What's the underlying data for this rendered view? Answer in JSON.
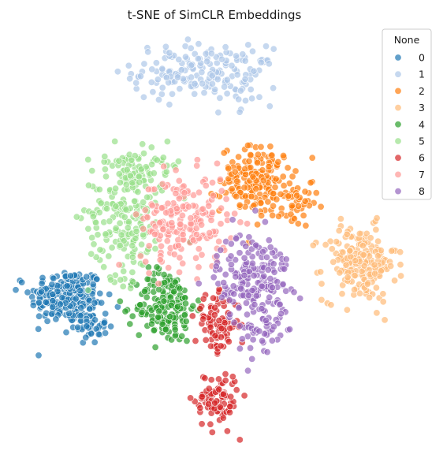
{
  "chart_data": {
    "type": "scatter",
    "title": "t-SNE of SimCLR Embeddings",
    "xlabel": "",
    "ylabel": "",
    "axes_visible": false,
    "grid": false,
    "legend": {
      "title": "None",
      "placement": "top-right",
      "entries": [
        "0",
        "1",
        "2",
        "3",
        "4",
        "5",
        "6",
        "7",
        "8"
      ]
    },
    "colors": {
      "0": "#1f77b4",
      "1": "#aec7e8",
      "2": "#ff7f0e",
      "3": "#ffbb78",
      "4": "#2ca02c",
      "5": "#98df8a",
      "6": "#d62728",
      "7": "#ff9896",
      "8": "#9467bd"
    },
    "point_opacity": 0.7,
    "series": [
      {
        "name": "0",
        "clusters": [
          {
            "center": [
              -42,
              -10
            ],
            "spread": [
              5,
              3
            ],
            "count": 220
          },
          {
            "center": [
              -36,
              -16
            ],
            "spread": [
              2.5,
              2
            ],
            "count": 50
          }
        ]
      },
      {
        "name": "1",
        "clusters": [
          {
            "center": [
              -8,
              38
            ],
            "spread": [
              8,
              3
            ],
            "count": 150
          },
          {
            "center": [
              8,
              37
            ],
            "spread": [
              3,
              3
            ],
            "count": 40
          }
        ]
      },
      {
        "name": "2",
        "clusters": [
          {
            "center": [
              10,
              15
            ],
            "spread": [
              5,
              3.5
            ],
            "count": 180
          },
          {
            "center": [
              20,
              9
            ],
            "spread": [
              3,
              2
            ],
            "count": 40
          }
        ]
      },
      {
        "name": "3",
        "clusters": [
          {
            "center": [
              38,
              -3
            ],
            "spread": [
              5,
              4
            ],
            "count": 200
          }
        ]
      },
      {
        "name": "4",
        "clusters": [
          {
            "center": [
              -15,
              -12
            ],
            "spread": [
              4,
              4
            ],
            "count": 180
          }
        ]
      },
      {
        "name": "5",
        "clusters": [
          {
            "center": [
              -26,
              8
            ],
            "spread": [
              5,
              7
            ],
            "count": 200
          },
          {
            "center": [
              -20,
              18
            ],
            "spread": [
              5,
              2
            ],
            "count": 50
          }
        ]
      },
      {
        "name": "6",
        "clusters": [
          {
            "center": [
              -1,
              -16
            ],
            "spread": [
              3,
              3
            ],
            "count": 90
          },
          {
            "center": [
              -1,
              -32
            ],
            "spread": [
              3,
              3
            ],
            "count": 90
          }
        ]
      },
      {
        "name": "7",
        "clusters": [
          {
            "center": [
              -10,
              6
            ],
            "spread": [
              6,
              5
            ],
            "count": 200
          }
        ]
      },
      {
        "name": "8",
        "clusters": [
          {
            "center": [
              9,
              -6
            ],
            "spread": [
              5,
              5
            ],
            "count": 200
          },
          {
            "center": [
              11,
              -18
            ],
            "spread": [
              3,
              3
            ],
            "count": 40
          }
        ]
      }
    ]
  }
}
